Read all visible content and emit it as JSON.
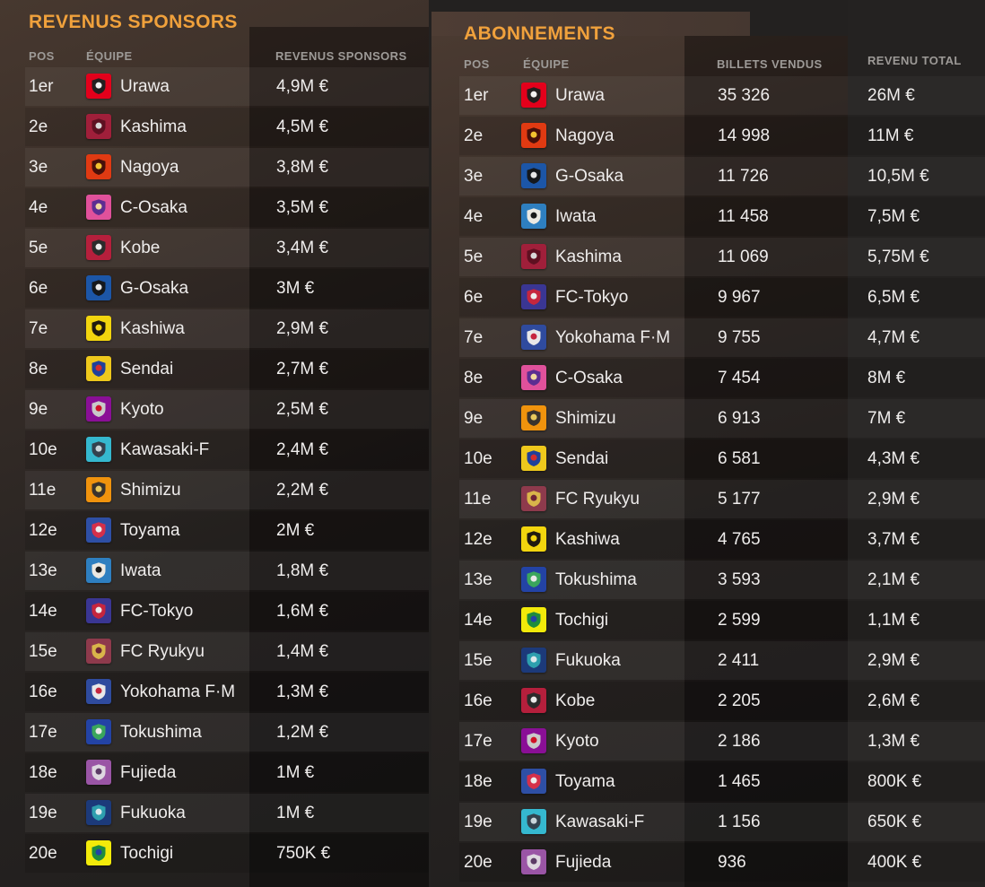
{
  "screen": {
    "name": "Finances - Comparaison des clubs"
  },
  "colors": {
    "accent_orange": "#f0a13c",
    "header_gray": "#9d9a97",
    "body_text": "#efedec",
    "page_bg": "#232120",
    "panel_brown": "#47382f",
    "dark_band": "#1e1c1b"
  },
  "left_table": {
    "title": "REVENUS SPONSORS",
    "columns": {
      "pos": "POS",
      "team": "ÉQUIPE",
      "value": "REVENUS SPONSORS"
    },
    "rows": [
      {
        "pos": "1er",
        "team": "Urawa",
        "value": "4,9M €"
      },
      {
        "pos": "2e",
        "team": "Kashima",
        "value": "4,5M €"
      },
      {
        "pos": "3e",
        "team": "Nagoya",
        "value": "3,8M €"
      },
      {
        "pos": "4e",
        "team": "C-Osaka",
        "value": "3,5M €"
      },
      {
        "pos": "5e",
        "team": "Kobe",
        "value": "3,4M €"
      },
      {
        "pos": "6e",
        "team": "G-Osaka",
        "value": "3M €"
      },
      {
        "pos": "7e",
        "team": "Kashiwa",
        "value": "2,9M €"
      },
      {
        "pos": "8e",
        "team": "Sendai",
        "value": "2,7M €"
      },
      {
        "pos": "9e",
        "team": "Kyoto",
        "value": "2,5M €"
      },
      {
        "pos": "10e",
        "team": "Kawasaki-F",
        "value": "2,4M €"
      },
      {
        "pos": "11e",
        "team": "Shimizu",
        "value": "2,2M €"
      },
      {
        "pos": "12e",
        "team": "Toyama",
        "value": "2M €"
      },
      {
        "pos": "13e",
        "team": "Iwata",
        "value": "1,8M €"
      },
      {
        "pos": "14e",
        "team": "FC-Tokyo",
        "value": "1,6M €"
      },
      {
        "pos": "15e",
        "team": "FC Ryukyu",
        "value": "1,4M €"
      },
      {
        "pos": "16e",
        "team": "Yokohama F·M",
        "value": "1,3M €"
      },
      {
        "pos": "17e",
        "team": "Tokushima",
        "value": "1,2M €"
      },
      {
        "pos": "18e",
        "team": "Fujieda",
        "value": "1M €"
      },
      {
        "pos": "19e",
        "team": "Fukuoka",
        "value": "1M €"
      },
      {
        "pos": "20e",
        "team": "Tochigi",
        "value": "750K €"
      }
    ]
  },
  "right_table": {
    "title": "ABONNEMENTS",
    "columns": {
      "pos": "POS",
      "team": "ÉQUIPE",
      "tickets": "BILLETS VENDUS",
      "revenue": "REVENU TOTAL"
    },
    "rows": [
      {
        "pos": "1er",
        "team": "Urawa",
        "tickets": "35 326",
        "revenue": "26M €"
      },
      {
        "pos": "2e",
        "team": "Nagoya",
        "tickets": "14 998",
        "revenue": "11M €"
      },
      {
        "pos": "3e",
        "team": "G-Osaka",
        "tickets": "11 726",
        "revenue": "10,5M €"
      },
      {
        "pos": "4e",
        "team": "Iwata",
        "tickets": "11 458",
        "revenue": "7,5M €"
      },
      {
        "pos": "5e",
        "team": "Kashima",
        "tickets": "11 069",
        "revenue": "5,75M €"
      },
      {
        "pos": "6e",
        "team": "FC-Tokyo",
        "tickets": "9 967",
        "revenue": "6,5M €"
      },
      {
        "pos": "7e",
        "team": "Yokohama F·M",
        "tickets": "9 755",
        "revenue": "4,7M €"
      },
      {
        "pos": "8e",
        "team": "C-Osaka",
        "tickets": "7 454",
        "revenue": "8M €"
      },
      {
        "pos": "9e",
        "team": "Shimizu",
        "tickets": "6 913",
        "revenue": "7M €"
      },
      {
        "pos": "10e",
        "team": "Sendai",
        "tickets": "6 581",
        "revenue": "4,3M €"
      },
      {
        "pos": "11e",
        "team": "FC Ryukyu",
        "tickets": "5 177",
        "revenue": "2,9M €"
      },
      {
        "pos": "12e",
        "team": "Kashiwa",
        "tickets": "4 765",
        "revenue": "3,7M €"
      },
      {
        "pos": "13e",
        "team": "Tokushima",
        "tickets": "3 593",
        "revenue": "2,1M €"
      },
      {
        "pos": "14e",
        "team": "Tochigi",
        "tickets": "2 599",
        "revenue": "1,1M €"
      },
      {
        "pos": "15e",
        "team": "Fukuoka",
        "tickets": "2 411",
        "revenue": "2,9M €"
      },
      {
        "pos": "16e",
        "team": "Kobe",
        "tickets": "2 205",
        "revenue": "2,6M €"
      },
      {
        "pos": "17e",
        "team": "Kyoto",
        "tickets": "2 186",
        "revenue": "1,3M €"
      },
      {
        "pos": "18e",
        "team": "Toyama",
        "tickets": "1 465",
        "revenue": "800K €"
      },
      {
        "pos": "19e",
        "team": "Kawasaki-F",
        "tickets": "1 156",
        "revenue": "650K €"
      },
      {
        "pos": "20e",
        "team": "Fujieda",
        "tickets": "936",
        "revenue": "400K €"
      }
    ]
  },
  "badges": {
    "Urawa": {
      "bg": "#e3001b",
      "fg": "#231f20",
      "accent": "#f2f2f2"
    },
    "Kashima": {
      "bg": "#a01f3a",
      "fg": "#5e1021",
      "accent": "#d8d8d8"
    },
    "Nagoya": {
      "bg": "#e03a12",
      "fg": "#47100a",
      "accent": "#f2c230"
    },
    "C-Osaka": {
      "bg": "#e0519b",
      "fg": "#5c2d91",
      "accent": "#f2d9a0"
    },
    "Kobe": {
      "bg": "#b51f3c",
      "fg": "#2b2b2b",
      "accent": "#ececec"
    },
    "G-Osaka": {
      "bg": "#1c56a7",
      "fg": "#15181c",
      "accent": "#e8e8e8"
    },
    "Kashiwa": {
      "bg": "#f2d50e",
      "fg": "#201a10",
      "accent": "#f2d50e"
    },
    "Sendai": {
      "bg": "#eec81c",
      "fg": "#20409a",
      "accent": "#d42c2c"
    },
    "Kyoto": {
      "bg": "#8a0f96",
      "fg": "#c9c9c9",
      "accent": "#cf1126"
    },
    "Kawasaki-F": {
      "bg": "#35b8cf",
      "fg": "#33424f",
      "accent": "#c9d4da"
    },
    "Shimizu": {
      "bg": "#f0930d",
      "fg": "#3a332d",
      "accent": "#e8c95d"
    },
    "Toyama": {
      "bg": "#2e4fa5",
      "fg": "#d4304a",
      "accent": "#ececec"
    },
    "Iwata": {
      "bg": "#2e7fc0",
      "fg": "#ece9e2",
      "accent": "#1a1a1a"
    },
    "FC-Tokyo": {
      "bg": "#3a3693",
      "fg": "#c6263e",
      "accent": "#ececec"
    },
    "FC Ryukyu": {
      "bg": "#8e3a4c",
      "fg": "#d9b54a",
      "accent": "#6e2436"
    },
    "Yokohama F·M": {
      "bg": "#2f4b9e",
      "fg": "#e8e8e8",
      "accent": "#c6263e"
    },
    "Tokushima": {
      "bg": "#2343a5",
      "fg": "#3aa65c",
      "accent": "#e8e8e8"
    },
    "Fujieda": {
      "bg": "#9a55a5",
      "fg": "#ded7e0",
      "accent": "#5c3b66"
    },
    "Fukuoka": {
      "bg": "#1c3a7a",
      "fg": "#2e9fae",
      "accent": "#dce8ec"
    },
    "Tochigi": {
      "bg": "#f2ea0a",
      "fg": "#1f8c3c",
      "accent": "#2343a5"
    }
  }
}
